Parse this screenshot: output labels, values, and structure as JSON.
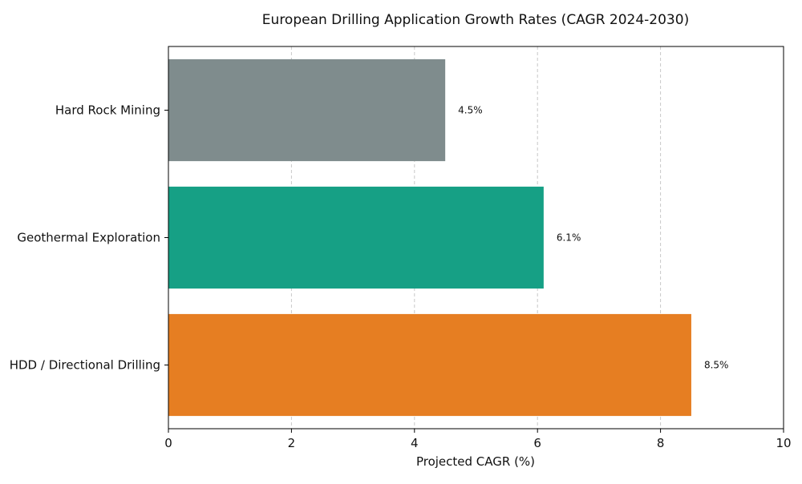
{
  "chart_data": {
    "type": "bar",
    "orientation": "horizontal",
    "title": "European Drilling Application Growth Rates (CAGR 2024-2030)",
    "xlabel": "Projected CAGR (%)",
    "ylabel": "",
    "xlim": [
      0,
      10
    ],
    "xticks": [
      0,
      2,
      4,
      6,
      8,
      10
    ],
    "grid": "x-dashed",
    "categories": [
      "Hard Rock Mining",
      "Geothermal Exploration",
      "HDD / Directional Drilling"
    ],
    "values": [
      4.5,
      6.1,
      8.5
    ],
    "value_labels": [
      "4.5%",
      "6.1%",
      "8.5%"
    ],
    "colors": [
      "#7f8c8d",
      "#16a085",
      "#e67e22"
    ]
  }
}
